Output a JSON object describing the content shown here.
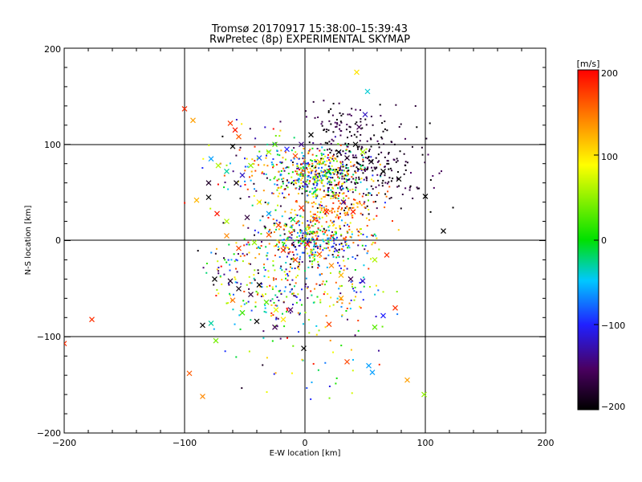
{
  "chart_data": {
    "type": "scatter",
    "title": "Tromsø 20170917 15:38:00–15:39:43",
    "subtitle": "RwPretec (8p) EXPERIMENTAL SKYMAP",
    "xlabel": "E-W location [km]",
    "ylabel": "N-S location [km]",
    "xlim": [
      -200,
      200
    ],
    "ylim": [
      -200,
      200
    ],
    "xticks": [
      -200,
      -100,
      0,
      100,
      200
    ],
    "yticks": [
      -200,
      -100,
      0,
      100,
      200
    ],
    "tick_labels_x": [
      "−200",
      "−100",
      "0",
      "100",
      "200"
    ],
    "tick_labels_y": [
      "−200",
      "−100",
      "0",
      "100",
      "200"
    ],
    "grid": true,
    "colorbar": {
      "label": "[m/s]",
      "min": -200,
      "max": 200,
      "ticks": [
        200,
        100,
        0,
        -100,
        -200
      ],
      "tick_labels": [
        "200",
        "100",
        "0",
        "−100",
        "−200"
      ],
      "colormap_stops": [
        "#000000",
        "#4a0060",
        "#2020ff",
        "#00c8ff",
        "#00e000",
        "#ffff00",
        "#ff8000",
        "#ff0000"
      ]
    },
    "series": [
      {
        "marker": "x",
        "points": [
          [
            -100,
            137,
            180
          ],
          [
            -93,
            125,
            130
          ],
          [
            -62,
            122,
            175
          ],
          [
            -58,
            115,
            190
          ],
          [
            -55,
            108,
            160
          ],
          [
            -60,
            98,
            -200
          ],
          [
            -78,
            85,
            -60
          ],
          [
            -72,
            78,
            60
          ],
          [
            -65,
            72,
            -30
          ],
          [
            -80,
            60,
            -180
          ],
          [
            -57,
            60,
            -190
          ],
          [
            -52,
            68,
            -120
          ],
          [
            -45,
            78,
            50
          ],
          [
            -38,
            86,
            -80
          ],
          [
            -30,
            92,
            60
          ],
          [
            -25,
            100,
            30
          ],
          [
            -15,
            95,
            -100
          ],
          [
            -8,
            88,
            170
          ],
          [
            -3,
            100,
            -140
          ],
          [
            5,
            110,
            -200
          ],
          [
            12,
            82,
            120
          ],
          [
            20,
            72,
            0
          ],
          [
            28,
            92,
            -200
          ],
          [
            35,
            86,
            -180
          ],
          [
            42,
            100,
            -200
          ],
          [
            45,
            118,
            -160
          ],
          [
            50,
            131,
            -120
          ],
          [
            52,
            155,
            -40
          ],
          [
            43,
            175,
            100
          ],
          [
            48,
            92,
            60
          ],
          [
            55,
            82,
            -190
          ],
          [
            65,
            72,
            -200
          ],
          [
            78,
            64,
            -200
          ],
          [
            100,
            46,
            -200
          ],
          [
            115,
            10,
            -200
          ],
          [
            -90,
            42,
            120
          ],
          [
            -80,
            45,
            -200
          ],
          [
            -73,
            28,
            190
          ],
          [
            -65,
            20,
            60
          ],
          [
            -48,
            24,
            -170
          ],
          [
            -38,
            40,
            100
          ],
          [
            -30,
            28,
            -60
          ],
          [
            -22,
            16,
            170
          ],
          [
            -10,
            22,
            -10
          ],
          [
            -3,
            34,
            180
          ],
          [
            8,
            22,
            160
          ],
          [
            18,
            30,
            190
          ],
          [
            25,
            46,
            130
          ],
          [
            32,
            40,
            -140
          ],
          [
            40,
            30,
            190
          ],
          [
            -65,
            5,
            140
          ],
          [
            -55,
            -8,
            170
          ],
          [
            -42,
            -2,
            50
          ],
          [
            -30,
            6,
            160
          ],
          [
            -18,
            -10,
            180
          ],
          [
            -8,
            -20,
            170
          ],
          [
            2,
            -4,
            190
          ],
          [
            12,
            -14,
            160
          ],
          [
            22,
            -26,
            140
          ],
          [
            30,
            -36,
            120
          ],
          [
            -75,
            -40,
            -200
          ],
          [
            -62,
            -42,
            -180
          ],
          [
            -55,
            -50,
            -190
          ],
          [
            -45,
            -56,
            -170
          ],
          [
            -38,
            -46,
            -200
          ],
          [
            -32,
            -64,
            30
          ],
          [
            -24,
            -72,
            80
          ],
          [
            -18,
            -82,
            100
          ],
          [
            -12,
            -72,
            -150
          ],
          [
            -25,
            -90,
            -160
          ],
          [
            -40,
            -84,
            -200
          ],
          [
            -52,
            -75,
            20
          ],
          [
            -60,
            -62,
            150
          ],
          [
            -85,
            -88,
            -200
          ],
          [
            -74,
            -104,
            40
          ],
          [
            -78,
            -86,
            -30
          ],
          [
            -96,
            -138,
            160
          ],
          [
            -85,
            -162,
            140
          ],
          [
            -177,
            -82,
            180
          ],
          [
            -200,
            -107,
            180
          ],
          [
            38,
            -40,
            -160
          ],
          [
            48,
            -42,
            -120
          ],
          [
            58,
            -20,
            60
          ],
          [
            68,
            -15,
            180
          ],
          [
            75,
            -70,
            180
          ],
          [
            65,
            -78,
            -100
          ],
          [
            58,
            -90,
            30
          ],
          [
            20,
            -87,
            170
          ],
          [
            30,
            -60,
            130
          ],
          [
            53,
            -130,
            -60
          ],
          [
            56,
            -137,
            -60
          ],
          [
            85,
            -145,
            130
          ],
          [
            99,
            -160,
            50
          ],
          [
            35,
            -126,
            170
          ],
          [
            -1,
            -112,
            -200
          ]
        ]
      },
      {
        "marker": "dot",
        "clusters": [
          {
            "cx": 15,
            "cy": 68,
            "sx": 20,
            "sy": 14,
            "n": 420,
            "vmin": -200,
            "vmax": 200
          },
          {
            "cx": 10,
            "cy": 2,
            "sx": 22,
            "sy": 15,
            "n": 420,
            "vmin": -200,
            "vmax": 200
          },
          {
            "cx": 55,
            "cy": 80,
            "sx": 25,
            "sy": 22,
            "n": 230,
            "vmin": -210,
            "vmax": -150
          },
          {
            "cx": 25,
            "cy": 120,
            "sx": 15,
            "sy": 10,
            "n": 60,
            "vmin": -210,
            "vmax": -150
          },
          {
            "cx": -30,
            "cy": 70,
            "sx": 22,
            "sy": 20,
            "n": 140,
            "vmin": -200,
            "vmax": 200
          },
          {
            "cx": -25,
            "cy": -55,
            "sx": 22,
            "sy": 15,
            "n": 140,
            "vmin": -200,
            "vmax": 200
          },
          {
            "cx": -45,
            "cy": -25,
            "sx": 20,
            "sy": 12,
            "n": 80,
            "vmin": -200,
            "vmax": 200
          },
          {
            "cx": 35,
            "cy": -55,
            "sx": 22,
            "sy": 18,
            "n": 70,
            "vmin": -120,
            "vmax": 200
          },
          {
            "cx": 0,
            "cy": -100,
            "sx": 35,
            "sy": 35,
            "n": 55,
            "vmin": -200,
            "vmax": 200
          },
          {
            "cx": 20,
            "cy": 30,
            "sx": 25,
            "sy": 12,
            "n": 120,
            "vmin": 100,
            "vmax": 200
          }
        ]
      }
    ]
  }
}
